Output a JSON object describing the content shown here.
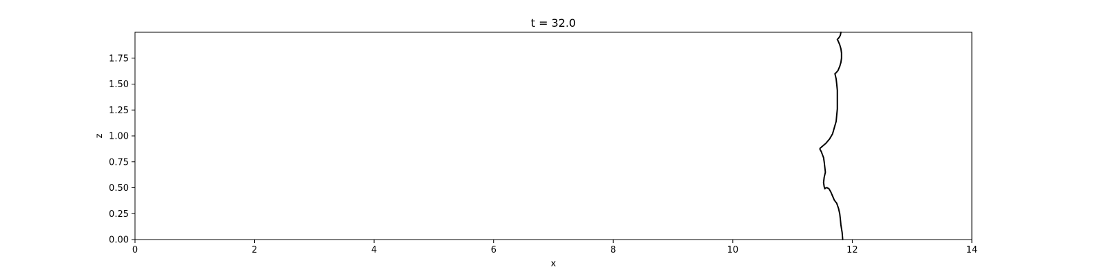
{
  "chart_data": {
    "type": "line",
    "title": "t = 32.0",
    "xlabel": "x",
    "ylabel": "z",
    "xlim": [
      0,
      14
    ],
    "ylim": [
      0,
      2.0
    ],
    "grid": false,
    "line_color": "#000000",
    "x_ticks": [
      0,
      2,
      4,
      6,
      8,
      10,
      12,
      14
    ],
    "x_tick_labels": [
      "0",
      "2",
      "4",
      "6",
      "8",
      "10",
      "12",
      "14"
    ],
    "y_ticks": [
      0,
      0.25,
      0.5,
      0.75,
      1.0,
      1.25,
      1.5,
      1.75
    ],
    "y_tick_labels": [
      "0.00",
      "0.25",
      "0.50",
      "0.75",
      "1.00",
      "1.25",
      "1.50",
      "1.75"
    ],
    "series": [
      {
        "x": [
          11.84,
          11.83,
          11.81,
          11.8,
          11.79,
          11.77,
          11.74,
          11.7,
          11.67,
          11.64,
          11.61,
          11.58,
          11.56,
          11.54,
          11.53,
          11.52,
          11.53,
          11.55,
          11.54,
          11.53,
          11.52,
          11.5,
          11.48,
          11.46,
          11.46,
          11.5,
          11.56,
          11.62,
          11.67,
          11.7,
          11.73,
          11.74,
          11.75,
          11.75,
          11.75,
          11.75,
          11.74,
          11.73,
          11.71,
          11.73,
          11.76,
          11.79,
          11.81,
          11.82,
          11.82,
          11.81,
          11.79,
          11.76,
          11.75,
          11.78,
          11.8,
          11.81
        ],
        "y": [
          0.0,
          0.07,
          0.14,
          0.2,
          0.25,
          0.3,
          0.35,
          0.38,
          0.42,
          0.46,
          0.49,
          0.5,
          0.5,
          0.49,
          0.51,
          0.55,
          0.6,
          0.65,
          0.7,
          0.75,
          0.79,
          0.82,
          0.85,
          0.87,
          0.88,
          0.9,
          0.93,
          0.97,
          1.02,
          1.08,
          1.14,
          1.2,
          1.26,
          1.32,
          1.38,
          1.44,
          1.5,
          1.55,
          1.6,
          1.61,
          1.63,
          1.67,
          1.71,
          1.75,
          1.8,
          1.84,
          1.88,
          1.92,
          1.93,
          1.95,
          1.97,
          2.0
        ]
      }
    ]
  }
}
